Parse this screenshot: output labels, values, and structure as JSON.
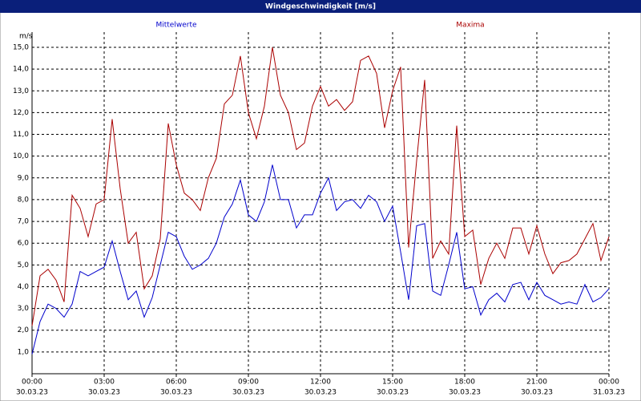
{
  "chart_data": {
    "type": "line",
    "title": "Windgeschwindigkeit [m/s]",
    "y_unit": "m/s",
    "x": [
      0,
      20,
      40,
      60,
      80,
      100,
      120,
      140,
      160,
      180,
      200,
      220,
      240,
      260,
      280,
      300,
      320,
      340,
      360,
      380,
      400,
      420,
      440,
      460,
      480,
      500,
      520,
      540,
      560,
      580,
      600,
      620,
      640,
      660,
      680,
      700,
      720,
      740,
      760,
      780,
      800,
      820,
      840,
      860,
      880,
      900,
      920,
      940,
      960,
      980,
      1000,
      1020,
      1040,
      1060,
      1080,
      1100,
      1120,
      1140,
      1160,
      1180,
      1200,
      1220,
      1240,
      1260,
      1280,
      1300,
      1320,
      1340,
      1360,
      1380,
      1400,
      1420,
      1440
    ],
    "series": [
      {
        "name": "Mittelwerte",
        "color": "#0000cc",
        "values": [
          0.9,
          2.4,
          3.2,
          3.0,
          2.6,
          3.2,
          4.7,
          4.5,
          4.7,
          4.9,
          6.1,
          4.7,
          3.4,
          3.8,
          2.6,
          3.5,
          5.0,
          6.5,
          6.3,
          5.4,
          4.8,
          5.0,
          5.3,
          6.0,
          7.2,
          7.8,
          8.9,
          7.3,
          7.0,
          7.9,
          9.6,
          8.0,
          8.0,
          6.7,
          7.3,
          7.3,
          8.3,
          9.0,
          7.5,
          7.9,
          8.0,
          7.6,
          8.2,
          7.9,
          7.0,
          7.7,
          5.6,
          3.4,
          6.8,
          6.9,
          3.8,
          3.6,
          5.0,
          6.5,
          3.9,
          4.0,
          2.7,
          3.4,
          3.7,
          3.3,
          4.1,
          4.2,
          3.4,
          4.2,
          3.6,
          3.4,
          3.2,
          3.3,
          3.2,
          4.1,
          3.3,
          3.5,
          3.9
        ]
      },
      {
        "name": "Maxima",
        "color": "#aa0000",
        "values": [
          2.2,
          4.5,
          4.8,
          4.3,
          3.3,
          8.2,
          7.6,
          6.3,
          7.8,
          8.0,
          11.7,
          8.5,
          6.0,
          6.5,
          3.9,
          4.5,
          6.2,
          11.5,
          9.6,
          8.3,
          8.0,
          7.5,
          9.0,
          9.9,
          12.4,
          12.8,
          14.6,
          12.0,
          10.8,
          12.3,
          15.0,
          12.8,
          12.0,
          10.3,
          10.6,
          12.3,
          13.2,
          12.3,
          12.6,
          12.1,
          12.5,
          14.4,
          14.6,
          13.8,
          11.3,
          13.0,
          14.1,
          5.8,
          9.8,
          13.5,
          5.3,
          6.1,
          5.5,
          11.4,
          6.3,
          6.6,
          4.1,
          5.3,
          6.0,
          5.3,
          6.7,
          6.7,
          5.5,
          6.8,
          5.5,
          4.6,
          5.1,
          5.2,
          5.5,
          6.2,
          6.9,
          5.2,
          6.3
        ]
      }
    ],
    "xlim": [
      0,
      1440
    ],
    "xticks": [
      {
        "value": 0,
        "label": "00:00"
      },
      {
        "value": 180,
        "label": "03:00"
      },
      {
        "value": 360,
        "label": "06:00"
      },
      {
        "value": 540,
        "label": "09:00"
      },
      {
        "value": 720,
        "label": "12:00"
      },
      {
        "value": 900,
        "label": "15:00"
      },
      {
        "value": 1080,
        "label": "18:00"
      },
      {
        "value": 1260,
        "label": "21:00"
      },
      {
        "value": 1440,
        "label": "00:00"
      }
    ],
    "xtick_dates": [
      "30.03.23",
      "30.03.23",
      "30.03.23",
      "30.03.23",
      "30.03.23",
      "30.03.23",
      "30.03.23",
      "30.03.23",
      "31.03.23"
    ],
    "ylim": [
      0,
      15.7
    ],
    "yticks": [
      {
        "value": 1,
        "label": "1,0"
      },
      {
        "value": 2,
        "label": "2,0"
      },
      {
        "value": 3,
        "label": "3,0"
      },
      {
        "value": 4,
        "label": "4,0"
      },
      {
        "value": 5,
        "label": "5,0"
      },
      {
        "value": 6,
        "label": "6,0"
      },
      {
        "value": 7,
        "label": "7,0"
      },
      {
        "value": 8,
        "label": "8,0"
      },
      {
        "value": 9,
        "label": "9,0"
      },
      {
        "value": 10,
        "label": "10,0"
      },
      {
        "value": 11,
        "label": "11,0"
      },
      {
        "value": 12,
        "label": "12,0"
      },
      {
        "value": 13,
        "label": "13,0"
      },
      {
        "value": 14,
        "label": "14,0"
      },
      {
        "value": 15,
        "label": "15,0"
      }
    ],
    "grid": true
  }
}
